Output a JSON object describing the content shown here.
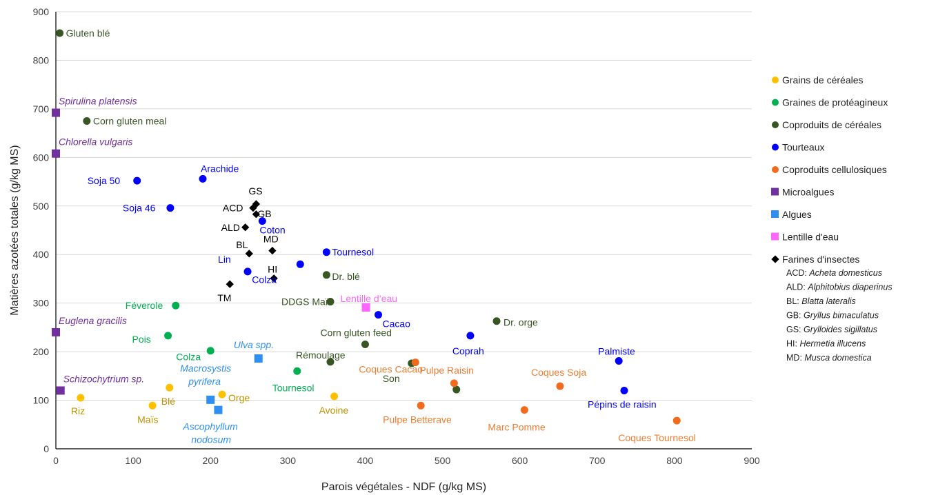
{
  "chart_data": {
    "type": "scatter",
    "xlabel": "Parois végétales - NDF (g/kg MS)",
    "ylabel": "Matières azotées totales (g/kg MS)",
    "xlim": [
      0,
      900
    ],
    "ylim": [
      0,
      900
    ],
    "x_ticks": [
      "0",
      "100",
      "200",
      "300",
      "400",
      "500",
      "600",
      "700",
      "800",
      "900"
    ],
    "y_ticks": [
      "0",
      "100",
      "200",
      "300",
      "400",
      "500",
      "600",
      "700",
      "800",
      "900"
    ],
    "grid": "horizontal",
    "legend_position": "right",
    "series": [
      {
        "name": "Grains de céréales",
        "color": "#FFC000",
        "marker": "circle",
        "points": [
          {
            "label": "Riz",
            "x": 32,
            "y": 105,
            "italic": false
          },
          {
            "label": "Maïs",
            "x": 125,
            "y": 89,
            "italic": false
          },
          {
            "label": "Blé",
            "x": 147,
            "y": 126,
            "italic": false
          },
          {
            "label": "Orge",
            "x": 215,
            "y": 112,
            "italic": false
          },
          {
            "label": "Avoine",
            "x": 360,
            "y": 108,
            "italic": false
          }
        ]
      },
      {
        "name": "Graines de protéagineux",
        "color": "#00B050",
        "marker": "circle",
        "points": [
          {
            "label": "Féverole",
            "x": 155,
            "y": 295,
            "italic": false
          },
          {
            "label": "Pois",
            "x": 145,
            "y": 233,
            "italic": false
          },
          {
            "label": "Colza",
            "x": 200,
            "y": 202,
            "italic": false
          },
          {
            "label": "Tournesol",
            "x": 312,
            "y": 160,
            "italic": false
          }
        ]
      },
      {
        "name": "Coproduits de céréales",
        "color": "#375623",
        "marker": "circle",
        "points": [
          {
            "label": "Gluten blé",
            "x": 5,
            "y": 856,
            "italic": false
          },
          {
            "label": "Corn gluten meal",
            "x": 40,
            "y": 675,
            "italic": false
          },
          {
            "label": "Dr. blé",
            "x": 350,
            "y": 358,
            "italic": false
          },
          {
            "label": "DDGS Maïs",
            "x": 355,
            "y": 303,
            "italic": false
          },
          {
            "label": "Corn gluten feed",
            "x": 400,
            "y": 215,
            "italic": false
          },
          {
            "label": "Rémoulage",
            "x": 355,
            "y": 179,
            "italic": false
          },
          {
            "label": "Son",
            "x": 460,
            "y": 176,
            "italic": false
          },
          {
            "label": "Dr. orge",
            "x": 570,
            "y": 263,
            "italic": false
          },
          {
            "label": "",
            "x": 518,
            "y": 122,
            "italic": false
          }
        ]
      },
      {
        "name": "Tourteaux",
        "color": "#0000FF",
        "marker": "circle",
        "points": [
          {
            "label": "Soja 50",
            "x": 105,
            "y": 552,
            "italic": false
          },
          {
            "label": "Soja 46",
            "x": 148,
            "y": 496,
            "italic": false
          },
          {
            "label": "Arachide",
            "x": 190,
            "y": 556,
            "italic": false
          },
          {
            "label": "Coton",
            "x": 267,
            "y": 469,
            "italic": false
          },
          {
            "label": "Lin",
            "x": 248,
            "y": 365,
            "italic": false
          },
          {
            "label": "Colza",
            "x": 316,
            "y": 380,
            "italic": false
          },
          {
            "label": "Tournesol",
            "x": 350,
            "y": 405,
            "italic": false
          },
          {
            "label": "Cacao",
            "x": 417,
            "y": 276,
            "italic": false
          },
          {
            "label": "Coprah",
            "x": 536,
            "y": 233,
            "italic": false
          },
          {
            "label": "Palmiste",
            "x": 728,
            "y": 181,
            "italic": false
          },
          {
            "label": "Pépins de raisin",
            "x": 735,
            "y": 120,
            "italic": false
          }
        ]
      },
      {
        "name": "Coproduits cellulosiques",
        "color": "#F26B1D",
        "marker": "circle",
        "points": [
          {
            "label": "Coques Cacao",
            "x": 465,
            "y": 178,
            "italic": false
          },
          {
            "label": "Pulpe Raisin",
            "x": 515,
            "y": 135,
            "italic": false
          },
          {
            "label": "Pulpe Betterave",
            "x": 472,
            "y": 89,
            "italic": false
          },
          {
            "label": "Marc Pomme",
            "x": 606,
            "y": 80,
            "italic": false
          },
          {
            "label": "Coques Soja",
            "x": 652,
            "y": 129,
            "italic": false
          },
          {
            "label": "Coques Tournesol",
            "x": 803,
            "y": 58,
            "italic": false
          }
        ]
      },
      {
        "name": "Microalgues",
        "color": "#7030A0",
        "marker": "square",
        "points": [
          {
            "label": "Spirulina platensis",
            "x": 0,
            "y": 692,
            "italic": true
          },
          {
            "label": "Chlorella vulgaris",
            "x": 0,
            "y": 608,
            "italic": true
          },
          {
            "label": "Euglena gracilis",
            "x": 0,
            "y": 240,
            "italic": true
          },
          {
            "label": "Schizochytrium sp.",
            "x": 6,
            "y": 120,
            "italic": true
          }
        ]
      },
      {
        "name": "Algues",
        "color": "#2E8FF0",
        "marker": "square",
        "points": [
          {
            "label": "Ulva spp.",
            "x": 262,
            "y": 186,
            "italic": true
          },
          {
            "label": "Macrosystis pyrifera",
            "x": 200,
            "y": 101,
            "italic": true
          },
          {
            "label": "Ascophyllum nodosum",
            "x": 210,
            "y": 80,
            "italic": true
          }
        ]
      },
      {
        "name": "Lentille d'eau",
        "color": "#FF66FF",
        "marker": "square",
        "points": [
          {
            "label": "Lentille d’eau",
            "x": 401,
            "y": 291,
            "italic": false
          }
        ]
      },
      {
        "name": "Farines d'insectes",
        "color": "#000000",
        "marker": "diamond",
        "points": [
          {
            "label": "GS",
            "x": 259,
            "y": 504,
            "italic": false
          },
          {
            "label": "ACD",
            "x": 255,
            "y": 496,
            "italic": false
          },
          {
            "label": "GB",
            "x": 259,
            "y": 483,
            "italic": false
          },
          {
            "label": "ALD",
            "x": 245,
            "y": 456,
            "italic": false
          },
          {
            "label": "BL",
            "x": 250,
            "y": 402,
            "italic": false
          },
          {
            "label": "MD",
            "x": 280,
            "y": 408,
            "italic": false
          },
          {
            "label": "HI",
            "x": 282,
            "y": 351,
            "italic": false
          },
          {
            "label": "TM",
            "x": 225,
            "y": 339,
            "italic": false
          }
        ]
      }
    ],
    "insect_abbreviations": [
      {
        "code": "ACD:",
        "name": "Acheta domesticus"
      },
      {
        "code": "ALD:",
        "name": "Alphitobius diaperinus"
      },
      {
        "code": "BL:",
        "name": "Blatta lateralis"
      },
      {
        "code": "GB:",
        "name": "Gryllus bimaculatus"
      },
      {
        "code": "GS:",
        "name": "Grylloides sigillatus"
      },
      {
        "code": "HI:",
        "name": "Hermetia illucens"
      },
      {
        "code": "MD:",
        "name": "Musca domestica"
      }
    ]
  }
}
